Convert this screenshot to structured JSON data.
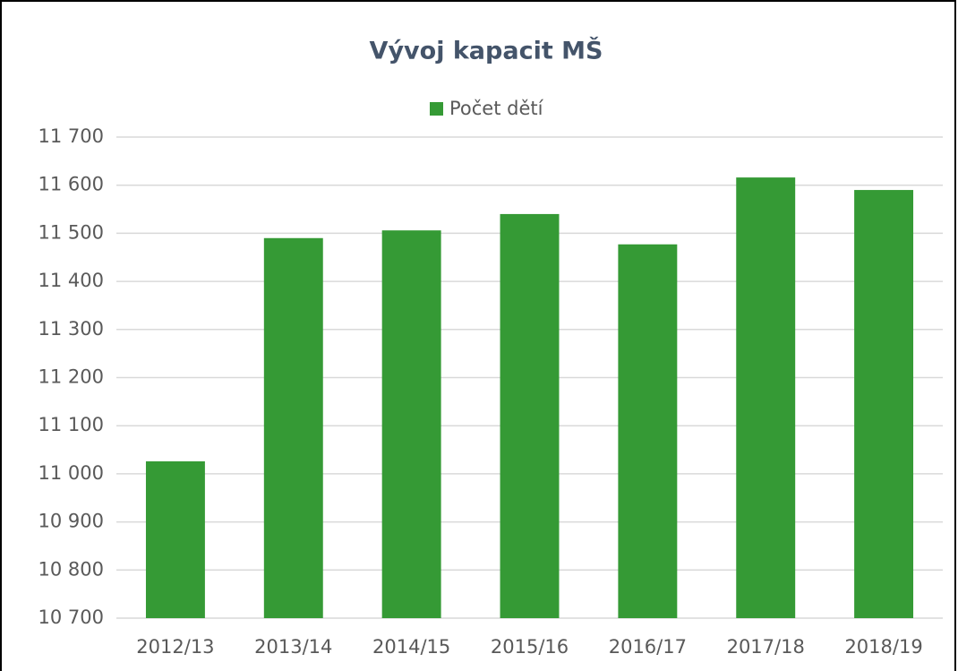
{
  "chart_data": {
    "type": "bar",
    "title": "Vývoj kapacit MŠ",
    "categories": [
      "2012/13",
      "2013/14",
      "2014/15",
      "2015/16",
      "2016/17",
      "2017/18",
      "2018/19"
    ],
    "series": [
      {
        "name": "Počet dětí",
        "color": "#359a35",
        "values": [
          11026,
          11490,
          11506,
          11540,
          11477,
          11616,
          11590
        ]
      }
    ],
    "ylim": [
      10700,
      11700
    ],
    "yticks": [
      {
        "value": 10700,
        "label": "10 700"
      },
      {
        "value": 10800,
        "label": "10 800"
      },
      {
        "value": 10900,
        "label": "10 900"
      },
      {
        "value": 11000,
        "label": "11 000"
      },
      {
        "value": 11100,
        "label": "11 100"
      },
      {
        "value": 11200,
        "label": "11 200"
      },
      {
        "value": 11300,
        "label": "11 300"
      },
      {
        "value": 11400,
        "label": "11 400"
      },
      {
        "value": 11500,
        "label": "11 500"
      },
      {
        "value": 11600,
        "label": "11 600"
      },
      {
        "value": 11700,
        "label": "11 700"
      }
    ],
    "grid": true,
    "legend": "top"
  }
}
